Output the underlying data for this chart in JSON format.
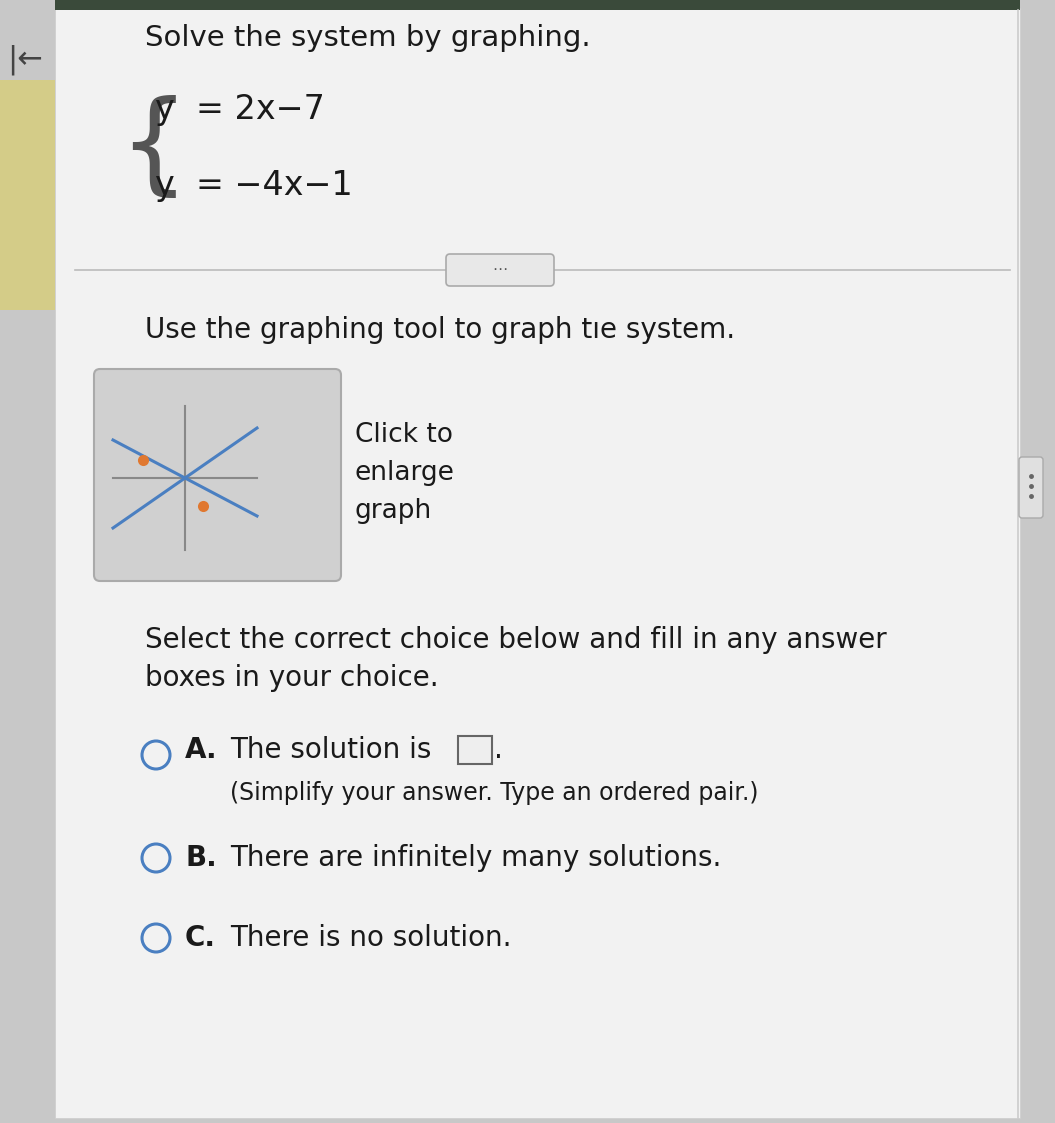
{
  "title": "Solve the system by graphing.",
  "eq1": "y  = 2x−7",
  "eq2": "y  = −4x−1",
  "instruction_text": "Use the graphing tool to graph tıe system.",
  "choice_A_text": "The solution is",
  "choice_A_sub": "(Simplify your answer. Type an ordered pair.)",
  "choice_B_text": "There are infinitely many solutions.",
  "choice_C_text": "There is no solution.",
  "main_bg": "#f2f2f2",
  "outer_bg": "#c8c8c8",
  "top_bar_color": "#4a5a4a",
  "line_color": "#4a7fc1",
  "dot_color": "#e07830",
  "text_color": "#1a1a1a",
  "circle_color": "#4a7fc1",
  "divider_color": "#bbbbbb",
  "left_bar_color": "#d4cc88",
  "graph_bg": "#d8d8d8",
  "ellipsis_bg": "#e8e8e8",
  "ellipsis_border": "#aaaaaa"
}
